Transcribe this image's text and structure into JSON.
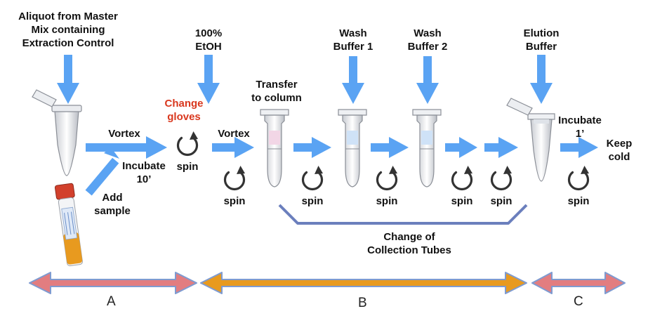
{
  "colors": {
    "arrow_blue": "#5aa3f3",
    "spin_dark": "#333333",
    "change_gloves": "#d9381e",
    "bracket": "#6b7fbd",
    "section_a_c_fill": "#e27d80",
    "section_b_fill": "#e89a1f",
    "section_outline": "#7e9bd1"
  },
  "labels": {
    "master_mix": "Aliquot from Master\nMix containing\nExtraction Control",
    "etoh": "100%\nEtOH",
    "wash1": "Wash\nBuffer 1",
    "wash2": "Wash\nBuffer 2",
    "elution": "Elution\nBuffer",
    "transfer": "Transfer\nto column",
    "change_gloves": "Change\ngloves",
    "vortex1": "Vortex",
    "incubate10": "Incubate\n10’",
    "add_sample": "Add\nsample",
    "vortex2": "Vortex",
    "incubate1": "Incubate\n1’",
    "keep_cold": "Keep\ncold",
    "change_tubes": "Change of\nCollection Tubes"
  },
  "spin_label": "spin",
  "sections": {
    "a": "A",
    "b": "B",
    "c": "C"
  }
}
